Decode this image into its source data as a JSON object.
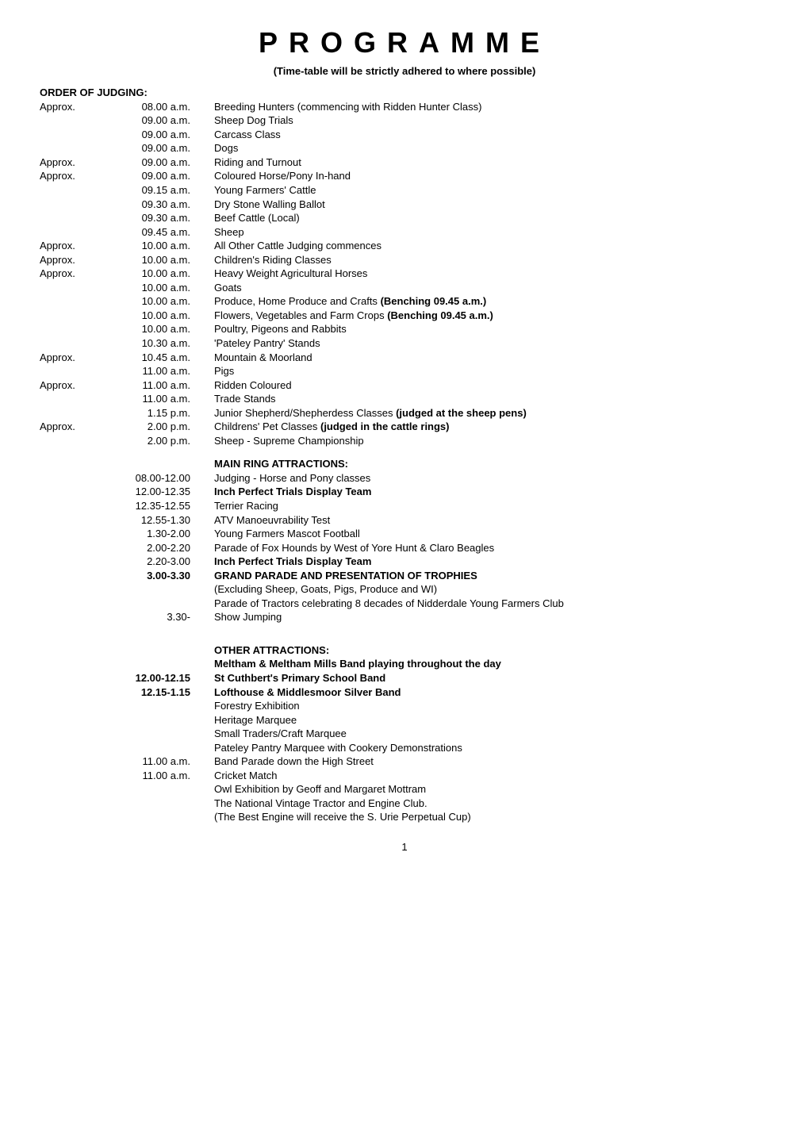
{
  "title": "PROGRAMME",
  "subtitle": "(Time-table will be strictly adhered to where possible)",
  "order_label": "ORDER OF JUDGING:",
  "schedule": [
    {
      "approx": "Approx.",
      "time": "08.00 a.m.",
      "desc": "Breeding Hunters (commencing with Ridden Hunter Class)"
    },
    {
      "approx": "",
      "time": "09.00 a.m.",
      "desc": "Sheep Dog Trials"
    },
    {
      "approx": "",
      "time": "09.00 a.m.",
      "desc": "Carcass Class"
    },
    {
      "approx": "",
      "time": "09.00 a.m.",
      "desc": "Dogs"
    },
    {
      "approx": "Approx.",
      "time": "09.00 a.m.",
      "desc": "Riding and Turnout"
    },
    {
      "approx": "Approx.",
      "time": "09.00 a.m.",
      "desc": "Coloured Horse/Pony In-hand"
    },
    {
      "approx": "",
      "time": "09.15 a.m.",
      "desc": "Young Farmers' Cattle"
    },
    {
      "approx": "",
      "time": "09.30 a.m.",
      "desc": "Dry Stone Walling Ballot"
    },
    {
      "approx": "",
      "time": "09.30 a.m.",
      "desc": "Beef Cattle (Local)"
    },
    {
      "approx": "",
      "time": "09.45 a.m.",
      "desc": "Sheep"
    },
    {
      "approx": "Approx.",
      "time": "10.00 a.m.",
      "desc": "All Other Cattle Judging commences"
    },
    {
      "approx": "Approx.",
      "time": "10.00 a.m.",
      "desc": "Children's Riding Classes"
    },
    {
      "approx": "Approx.",
      "time": "10.00 a.m.",
      "desc": "Heavy Weight Agricultural Horses"
    },
    {
      "approx": "",
      "time": "10.00 a.m.",
      "desc": "Goats"
    },
    {
      "approx": "",
      "time": "10.00 a.m.",
      "desc": "Produce, Home Produce and Crafts <b>(Benching 09.45 a.m.)</b>"
    },
    {
      "approx": "",
      "time": "10.00 a.m.",
      "desc": "Flowers, Vegetables and Farm Crops <b>(Benching 09.45 a.m.)</b>"
    },
    {
      "approx": "",
      "time": "10.00 a.m.",
      "desc": "Poultry, Pigeons and Rabbits"
    },
    {
      "approx": "",
      "time": "10.30 a.m.",
      "desc": "'Pateley Pantry' Stands"
    },
    {
      "approx": "Approx.",
      "time": "10.45 a.m.",
      "desc": "Mountain & Moorland"
    },
    {
      "approx": "",
      "time": "11.00 a.m.",
      "desc": "Pigs"
    },
    {
      "approx": "Approx.",
      "time": "11.00 a.m.",
      "desc": "Ridden Coloured"
    },
    {
      "approx": "",
      "time": "11.00 a.m.",
      "desc": "Trade Stands"
    },
    {
      "approx": "",
      "time": "1.15 p.m.",
      "desc": "Junior Shepherd/Shepherdess Classes <b>(judged at the sheep pens)</b>"
    },
    {
      "approx": "Approx.",
      "time": "2.00 p.m.",
      "desc": "Childrens' Pet Classes <b>(judged in the cattle rings)</b>"
    },
    {
      "approx": "",
      "time": "2.00 p.m.",
      "desc": "Sheep - Supreme Championship"
    }
  ],
  "main_ring_label": "MAIN RING ATTRACTIONS:",
  "main_ring": [
    {
      "time": "08.00-12.00",
      "desc": "Judging - Horse and Pony classes",
      "bold_time": false,
      "bold_desc": false
    },
    {
      "time": "12.00-12.35",
      "desc": "Inch Perfect Trials Display Team",
      "bold_time": false,
      "bold_desc": true
    },
    {
      "time": "12.35-12.55",
      "desc": "Terrier Racing",
      "bold_time": false,
      "bold_desc": false
    },
    {
      "time": "12.55-1.30",
      "desc": "ATV Manoeuvrability Test",
      "bold_time": false,
      "bold_desc": false
    },
    {
      "time": "1.30-2.00",
      "desc": "Young Farmers Mascot Football",
      "bold_time": false,
      "bold_desc": false
    },
    {
      "time": "2.00-2.20",
      "desc": "Parade of Fox Hounds by West of Yore Hunt & Claro Beagles",
      "bold_time": false,
      "bold_desc": false
    },
    {
      "time": "2.20-3.00",
      "desc": "Inch Perfect Trials Display Team",
      "bold_time": false,
      "bold_desc": true
    },
    {
      "time": "3.00-3.30",
      "desc": "GRAND PARADE AND PRESENTATION OF TROPHIES",
      "bold_time": true,
      "bold_desc": true
    },
    {
      "time": "",
      "desc": "(Excluding Sheep, Goats, Pigs, Produce and WI)",
      "bold_time": false,
      "bold_desc": false
    },
    {
      "time": "",
      "desc": "Parade of Tractors celebrating 8 decades of Nidderdale Young Farmers Club",
      "bold_time": false,
      "bold_desc": false
    },
    {
      "time": "3.30-",
      "desc": "Show Jumping",
      "bold_time": false,
      "bold_desc": false
    }
  ],
  "other_label": "OTHER ATTRACTIONS:",
  "other": [
    {
      "time": "",
      "desc": "Meltham & Meltham Mills Band playing throughout the day",
      "bold_time": false,
      "bold_desc": true
    },
    {
      "time": "12.00-12.15",
      "desc": "St Cuthbert's Primary School Band",
      "bold_time": true,
      "bold_desc": true
    },
    {
      "time": "12.15-1.15",
      "desc": "Lofthouse & Middlesmoor Silver Band",
      "bold_time": true,
      "bold_desc": true
    },
    {
      "time": "",
      "desc": "Forestry Exhibition",
      "bold_time": false,
      "bold_desc": false
    },
    {
      "time": "",
      "desc": "Heritage Marquee",
      "bold_time": false,
      "bold_desc": false
    },
    {
      "time": "",
      "desc": "Small Traders/Craft Marquee",
      "bold_time": false,
      "bold_desc": false
    },
    {
      "time": "",
      "desc": "Pateley Pantry Marquee with Cookery Demonstrations",
      "bold_time": false,
      "bold_desc": false
    },
    {
      "time": "11.00 a.m.",
      "desc": "Band Parade down the High Street",
      "bold_time": false,
      "bold_desc": false
    },
    {
      "time": "11.00 a.m.",
      "desc": "Cricket Match",
      "bold_time": false,
      "bold_desc": false
    },
    {
      "time": "",
      "desc": "Owl Exhibition by Geoff and Margaret Mottram",
      "bold_time": false,
      "bold_desc": false
    },
    {
      "time": "",
      "desc": "The National Vintage Tractor and Engine Club.",
      "bold_time": false,
      "bold_desc": false
    },
    {
      "time": "",
      "desc": "(The Best Engine will receive the S. Urie Perpetual Cup)",
      "bold_time": false,
      "bold_desc": false
    }
  ],
  "page_number": "1"
}
